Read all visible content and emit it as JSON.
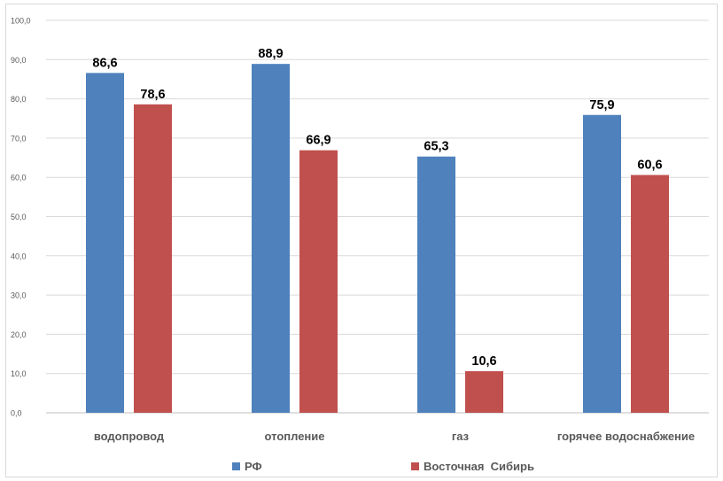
{
  "chart_data": {
    "type": "bar",
    "categories": [
      "водопровод",
      "отопление",
      "газ",
      "горячее водоснабжение"
    ],
    "series": [
      {
        "name": "РФ",
        "values": [
          86.6,
          88.9,
          65.3,
          75.9
        ],
        "color": "#4f81bd",
        "labels": [
          "86,6",
          "88,9",
          "65,3",
          "75,9"
        ]
      },
      {
        "name": "Восточная  Сибирь",
        "values": [
          78.6,
          66.9,
          10.6,
          60.6
        ],
        "color": "#c0504d",
        "labels": [
          "78,6",
          "66,9",
          "10,6",
          "60,6"
        ]
      }
    ],
    "ylim": [
      0,
      100
    ],
    "yticks": [
      0,
      10,
      20,
      30,
      40,
      50,
      60,
      70,
      80,
      90,
      100
    ],
    "ytick_labels": [
      "0,0",
      "10,0",
      "20,0",
      "30,0",
      "40,0",
      "50,0",
      "60,0",
      "70,0",
      "80,0",
      "90,0",
      "100,0"
    ],
    "title": "",
    "xlabel": "",
    "ylabel": "",
    "grid": true,
    "legend_position": "bottom"
  }
}
